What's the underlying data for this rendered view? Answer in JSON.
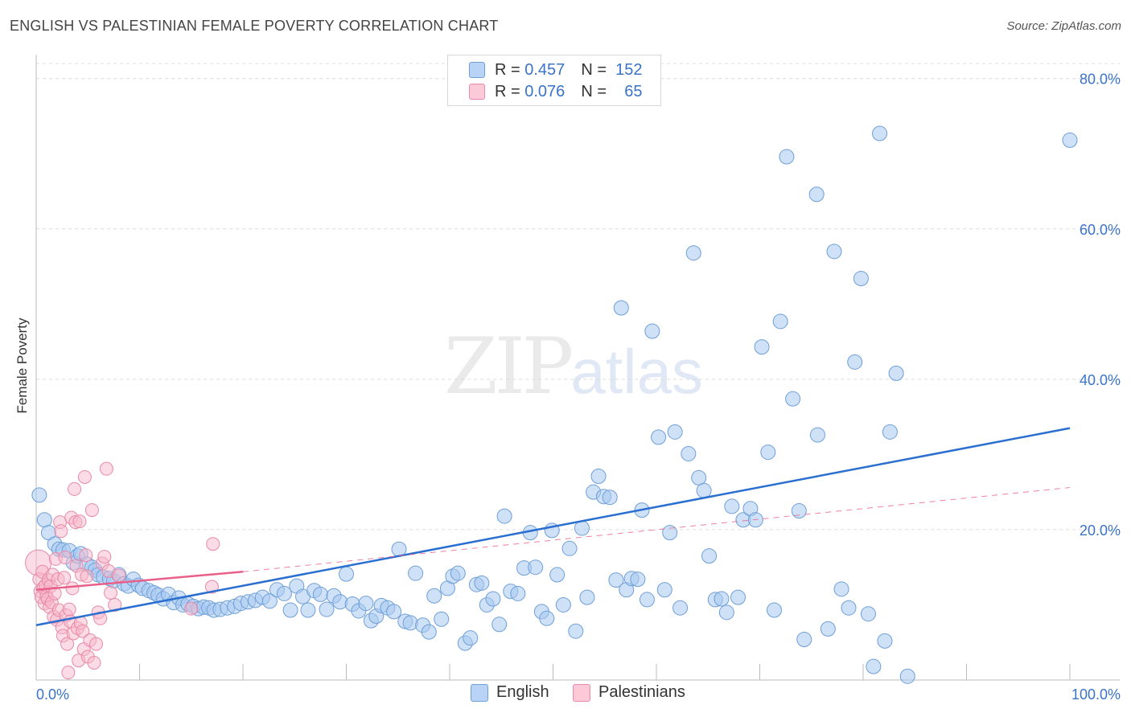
{
  "title": "ENGLISH VS PALESTINIAN FEMALE POVERTY CORRELATION CHART",
  "source": "Source: ZipAtlas.com",
  "watermark": {
    "part1": "ZIP",
    "part2": "atlas"
  },
  "colors": {
    "english": "#a8c8f0",
    "english_stroke": "#6e9fd8",
    "english_line": "#2a6fd0",
    "palestinian": "#f7b8cc",
    "palestinian_stroke": "#e88aa8",
    "palestinian_line": "#e8608a",
    "tick_label": "#3a73c8"
  },
  "legend_top": [
    {
      "r_label": "R =",
      "r_value": "0.457",
      "n_label": "N =",
      "n_value": "152"
    },
    {
      "r_label": "R =",
      "r_value": "0.076",
      "n_label": "N =",
      "n_value": "65"
    }
  ],
  "legend_bottom": [
    "English",
    "Palestinians"
  ],
  "chart_data": {
    "type": "scatter",
    "ylabel": "Female Poverty",
    "xlim": [
      0,
      100
    ],
    "ylim": [
      0,
      82
    ],
    "x_tick_labels": [
      "0.0%",
      "100.0%"
    ],
    "y_ticks": [
      20,
      40,
      60,
      80
    ],
    "y_tick_labels": [
      "20.0%",
      "40.0%",
      "60.0%",
      "80.0%"
    ],
    "grid": "horizontal dashed",
    "legend_position": "top-center",
    "series": [
      {
        "name": "English",
        "trendline": {
          "x": [
            0,
            100
          ],
          "y": [
            7.3,
            33.5
          ],
          "style": "solid"
        },
        "points": [
          [
            0.3,
            24.6
          ],
          [
            0.8,
            21.3
          ],
          [
            1.2,
            19.6
          ],
          [
            1.8,
            18.1
          ],
          [
            2.2,
            17.4
          ],
          [
            2.6,
            17.3
          ],
          [
            3.2,
            17.2
          ],
          [
            3.6,
            15.6
          ],
          [
            4.0,
            16.5
          ],
          [
            4.3,
            16.8
          ],
          [
            4.9,
            15.4
          ],
          [
            5.4,
            15.0
          ],
          [
            5.7,
            14.6
          ],
          [
            6.0,
            14.0
          ],
          [
            6.5,
            13.7
          ],
          [
            7.1,
            13.5
          ],
          [
            7.5,
            13.2
          ],
          [
            8.0,
            14.0
          ],
          [
            8.5,
            12.8
          ],
          [
            8.9,
            12.5
          ],
          [
            9.4,
            13.4
          ],
          [
            9.9,
            12.6
          ],
          [
            10.3,
            12.2
          ],
          [
            10.9,
            11.9
          ],
          [
            11.4,
            11.6
          ],
          [
            11.8,
            11.3
          ],
          [
            12.3,
            10.8
          ],
          [
            12.8,
            11.4
          ],
          [
            13.3,
            10.3
          ],
          [
            13.8,
            10.9
          ],
          [
            14.2,
            10.0
          ],
          [
            14.7,
            10.1
          ],
          [
            15.2,
            9.8
          ],
          [
            15.7,
            9.5
          ],
          [
            16.2,
            9.7
          ],
          [
            16.7,
            9.6
          ],
          [
            17.2,
            9.3
          ],
          [
            17.8,
            9.4
          ],
          [
            18.5,
            9.6
          ],
          [
            19.2,
            9.8
          ],
          [
            19.8,
            10.2
          ],
          [
            20.5,
            10.4
          ],
          [
            21.2,
            10.6
          ],
          [
            21.9,
            11.0
          ],
          [
            22.6,
            10.5
          ],
          [
            23.3,
            12.0
          ],
          [
            24.0,
            11.5
          ],
          [
            24.6,
            9.3
          ],
          [
            25.2,
            12.5
          ],
          [
            25.8,
            11.1
          ],
          [
            26.3,
            9.3
          ],
          [
            26.9,
            11.9
          ],
          [
            27.5,
            11.4
          ],
          [
            28.1,
            9.4
          ],
          [
            28.8,
            11.2
          ],
          [
            29.4,
            10.4
          ],
          [
            30.0,
            14.1
          ],
          [
            30.6,
            10.1
          ],
          [
            31.2,
            9.2
          ],
          [
            31.9,
            10.2
          ],
          [
            32.4,
            7.9
          ],
          [
            32.9,
            8.5
          ],
          [
            33.4,
            9.9
          ],
          [
            34.0,
            9.6
          ],
          [
            34.6,
            9.1
          ],
          [
            35.1,
            17.4
          ],
          [
            35.7,
            7.8
          ],
          [
            36.2,
            7.6
          ],
          [
            36.7,
            14.2
          ],
          [
            37.4,
            7.3
          ],
          [
            38.0,
            6.4
          ],
          [
            38.5,
            11.2
          ],
          [
            39.2,
            8.1
          ],
          [
            39.8,
            12.2
          ],
          [
            40.3,
            13.8
          ],
          [
            40.8,
            14.2
          ],
          [
            41.5,
            4.9
          ],
          [
            42.0,
            5.6
          ],
          [
            42.6,
            12.7
          ],
          [
            43.1,
            12.9
          ],
          [
            43.6,
            10.0
          ],
          [
            44.2,
            10.8
          ],
          [
            44.8,
            7.4
          ],
          [
            45.3,
            21.8
          ],
          [
            45.9,
            11.8
          ],
          [
            46.6,
            11.5
          ],
          [
            47.2,
            14.9
          ],
          [
            47.8,
            19.6
          ],
          [
            48.3,
            15.0
          ],
          [
            48.9,
            9.1
          ],
          [
            49.4,
            8.2
          ],
          [
            49.9,
            19.9
          ],
          [
            50.4,
            14.0
          ],
          [
            51.0,
            10.0
          ],
          [
            51.6,
            17.5
          ],
          [
            52.2,
            6.5
          ],
          [
            52.8,
            20.2
          ],
          [
            53.3,
            11.0
          ],
          [
            53.9,
            25.0
          ],
          [
            54.4,
            27.1
          ],
          [
            54.9,
            24.4
          ],
          [
            55.5,
            24.3
          ],
          [
            56.1,
            13.3
          ],
          [
            56.6,
            49.5
          ],
          [
            57.1,
            12.0
          ],
          [
            57.6,
            13.5
          ],
          [
            58.2,
            13.4
          ],
          [
            58.6,
            22.6
          ],
          [
            59.1,
            10.7
          ],
          [
            59.6,
            46.4
          ],
          [
            60.2,
            32.3
          ],
          [
            60.8,
            12.0
          ],
          [
            61.3,
            19.6
          ],
          [
            61.8,
            33.0
          ],
          [
            62.3,
            9.6
          ],
          [
            63.1,
            30.1
          ],
          [
            63.6,
            56.8
          ],
          [
            64.1,
            26.9
          ],
          [
            64.6,
            25.2
          ],
          [
            65.1,
            16.5
          ],
          [
            65.7,
            10.7
          ],
          [
            66.3,
            10.8
          ],
          [
            66.8,
            9.0
          ],
          [
            67.3,
            23.1
          ],
          [
            67.9,
            11.0
          ],
          [
            68.4,
            21.3
          ],
          [
            69.1,
            22.8
          ],
          [
            69.6,
            21.3
          ],
          [
            70.2,
            44.3
          ],
          [
            70.8,
            30.3
          ],
          [
            71.4,
            9.3
          ],
          [
            72.0,
            47.7
          ],
          [
            72.6,
            69.6
          ],
          [
            73.2,
            37.4
          ],
          [
            73.8,
            22.5
          ],
          [
            74.3,
            5.4
          ],
          [
            75.5,
            64.6
          ],
          [
            75.6,
            32.6
          ],
          [
            76.6,
            6.8
          ],
          [
            77.2,
            57.0
          ],
          [
            77.9,
            12.1
          ],
          [
            78.6,
            9.6
          ],
          [
            79.2,
            42.3
          ],
          [
            79.8,
            53.4
          ],
          [
            80.5,
            8.8
          ],
          [
            81.0,
            1.8
          ],
          [
            81.6,
            72.7
          ],
          [
            82.1,
            5.2
          ],
          [
            82.6,
            33.0
          ],
          [
            83.2,
            40.8
          ],
          [
            84.3,
            0.5
          ],
          [
            100.0,
            71.8
          ]
        ]
      },
      {
        "name": "Palestinians",
        "trendline": {
          "x": [
            0,
            20
          ],
          "y": [
            12.0,
            14.4
          ],
          "style": "solid"
        },
        "trendline_ext": {
          "x": [
            20,
            100
          ],
          "y": [
            14.4,
            25.6
          ],
          "style": "dashed"
        },
        "points": [
          [
            0.2,
            15.6
          ],
          [
            0.3,
            13.4
          ],
          [
            0.4,
            11.8
          ],
          [
            0.5,
            11.0
          ],
          [
            0.6,
            14.4
          ],
          [
            0.7,
            12.3
          ],
          [
            0.8,
            10.2
          ],
          [
            0.9,
            12.6
          ],
          [
            1.0,
            11.2
          ],
          [
            1.1,
            10.8
          ],
          [
            1.2,
            13.3
          ],
          [
            1.3,
            9.7
          ],
          [
            1.4,
            12.5
          ],
          [
            1.5,
            10.3
          ],
          [
            1.6,
            14.0
          ],
          [
            1.7,
            8.4
          ],
          [
            1.8,
            11.5
          ],
          [
            1.9,
            16.1
          ],
          [
            2.0,
            8.0
          ],
          [
            2.1,
            13.4
          ],
          [
            2.2,
            9.3
          ],
          [
            2.3,
            21.0
          ],
          [
            2.4,
            19.8
          ],
          [
            2.5,
            7.0
          ],
          [
            2.6,
            5.9
          ],
          [
            2.7,
            13.6
          ],
          [
            2.8,
            16.3
          ],
          [
            2.9,
            8.6
          ],
          [
            3.0,
            4.8
          ],
          [
            3.1,
            1.0
          ],
          [
            3.2,
            9.4
          ],
          [
            3.3,
            7.8
          ],
          [
            3.4,
            21.6
          ],
          [
            3.5,
            12.2
          ],
          [
            3.6,
            6.2
          ],
          [
            3.7,
            25.4
          ],
          [
            3.8,
            21.0
          ],
          [
            3.9,
            15.2
          ],
          [
            4.0,
            6.9
          ],
          [
            4.1,
            2.6
          ],
          [
            4.2,
            21.1
          ],
          [
            4.3,
            7.6
          ],
          [
            4.4,
            14.0
          ],
          [
            4.5,
            6.5
          ],
          [
            4.6,
            4.1
          ],
          [
            4.7,
            27.0
          ],
          [
            4.8,
            16.6
          ],
          [
            4.9,
            13.8
          ],
          [
            5.0,
            3.1
          ],
          [
            5.2,
            5.3
          ],
          [
            5.4,
            22.6
          ],
          [
            5.6,
            2.3
          ],
          [
            5.8,
            4.8
          ],
          [
            6.0,
            9.0
          ],
          [
            6.2,
            8.2
          ],
          [
            6.4,
            15.5
          ],
          [
            6.6,
            16.4
          ],
          [
            6.8,
            28.1
          ],
          [
            7.0,
            14.5
          ],
          [
            7.2,
            11.6
          ],
          [
            7.6,
            10.0
          ],
          [
            8.0,
            13.9
          ],
          [
            15.0,
            9.5
          ],
          [
            17.0,
            12.4
          ],
          [
            17.1,
            18.1
          ]
        ]
      }
    ]
  }
}
